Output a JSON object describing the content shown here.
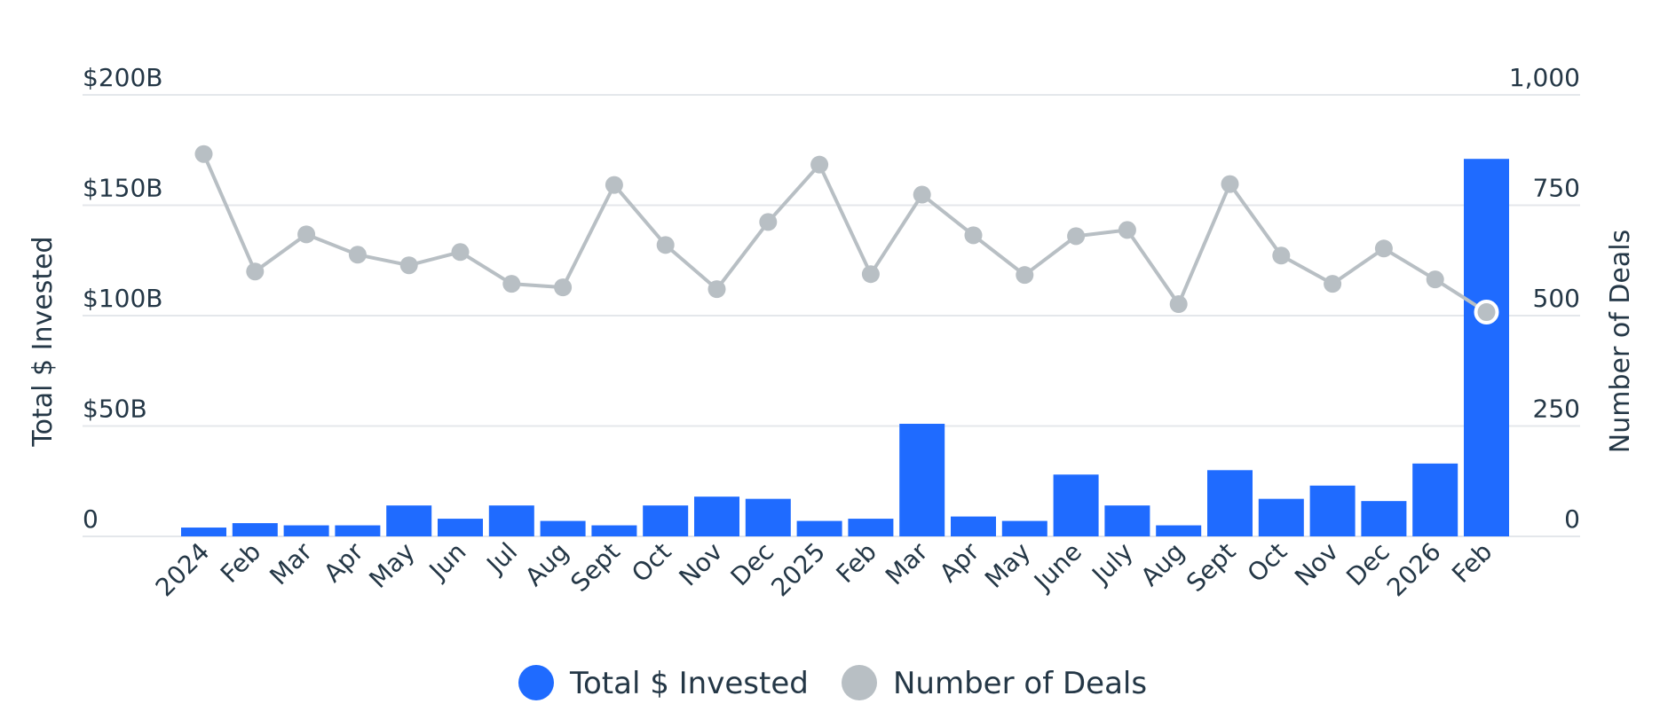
{
  "chart_data": {
    "type": "bar",
    "categories": [
      "2024",
      "Feb",
      "Mar",
      "Apr",
      "May",
      "Jun",
      "Jul",
      "Aug",
      "Sept",
      "Oct",
      "Nov",
      "Dec",
      "2025",
      "Feb",
      "Mar",
      "Apr",
      "May",
      "June",
      "July",
      "Aug",
      "Sept",
      "Oct",
      "Nov",
      "Dec",
      "2026",
      "Feb"
    ],
    "series": [
      {
        "name": "Total $ Invested",
        "type": "bar",
        "axis": "left",
        "unit": "billions USD",
        "values": [
          4,
          6,
          5,
          5,
          14,
          8,
          14,
          7,
          5,
          14,
          18,
          17,
          7,
          8,
          51,
          9,
          7,
          28,
          14,
          5,
          30,
          17,
          23,
          16,
          33,
          171
        ]
      },
      {
        "name": "Number of Deals",
        "type": "line",
        "axis": "right",
        "values": [
          866,
          600,
          684,
          638,
          614,
          644,
          572,
          564,
          796,
          660,
          560,
          712,
          842,
          594,
          774,
          682,
          592,
          680,
          694,
          526,
          798,
          636,
          572,
          652,
          582,
          508
        ]
      }
    ],
    "ylabel": "Total $ Invested",
    "y2label": "Number of Deals",
    "ylim": [
      0,
      200
    ],
    "y2lim": [
      0,
      1000
    ],
    "yticks": [
      {
        "value": 0,
        "label": "0"
      },
      {
        "value": 50,
        "label": "$50B"
      },
      {
        "value": 100,
        "label": "$100B"
      },
      {
        "value": 150,
        "label": "$150B"
      },
      {
        "value": 200,
        "label": "$200B"
      }
    ],
    "y2ticks": [
      {
        "value": 0,
        "label": "0"
      },
      {
        "value": 250,
        "label": "250"
      },
      {
        "value": 500,
        "label": "500"
      },
      {
        "value": 750,
        "label": "750"
      },
      {
        "value": 1000,
        "label": "1,000"
      }
    ],
    "grid": true,
    "legend_position": "bottom-center",
    "highlighted_point_index": 25,
    "colors": {
      "bar": "#1f6bff",
      "line": "#b8bfc4",
      "grid": "#e4e7eb",
      "text": "#243746"
    }
  }
}
